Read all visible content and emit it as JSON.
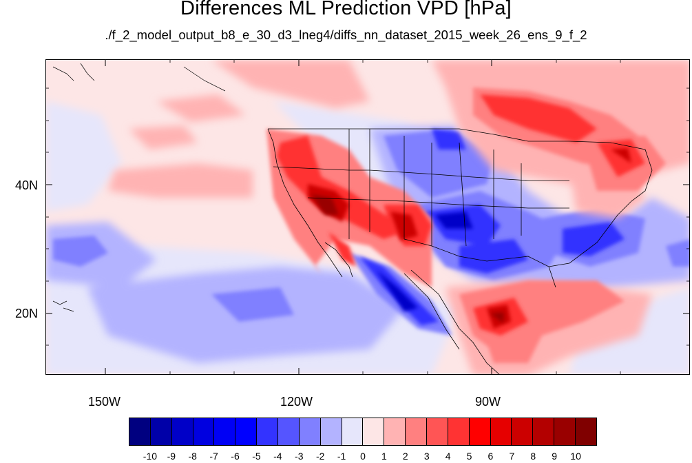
{
  "title": "Differences ML Prediction VPD [hPa]",
  "subtitle": "./f_2_model_output_b8_e_30_d3_lneg4/diffs_nn_dataset_2015_week_26_ens_9_f_2",
  "axes": {
    "lat_labels": [
      "40N",
      "20N"
    ],
    "lon_labels": [
      "150W",
      "120W",
      "90W"
    ]
  },
  "colorbar": {
    "labels": [
      "-10",
      "-9",
      "-8",
      "-7",
      "-6",
      "-5",
      "-4",
      "-3",
      "-2",
      "-1",
      "0",
      "1",
      "2",
      "3",
      "4",
      "5",
      "6",
      "7",
      "8",
      "9",
      "10"
    ],
    "colors": [
      "#000080",
      "#0000a8",
      "#0000c8",
      "#0000e0",
      "#0000f5",
      "#0000ff",
      "#3333ff",
      "#5555ff",
      "#8080ff",
      "#b3b3ff",
      "#e6e6fb",
      "#fde6e6",
      "#ffb3b3",
      "#ff8080",
      "#ff5555",
      "#ff3333",
      "#ff0000",
      "#e60000",
      "#cc0000",
      "#b30000",
      "#990000",
      "#800000"
    ]
  }
}
